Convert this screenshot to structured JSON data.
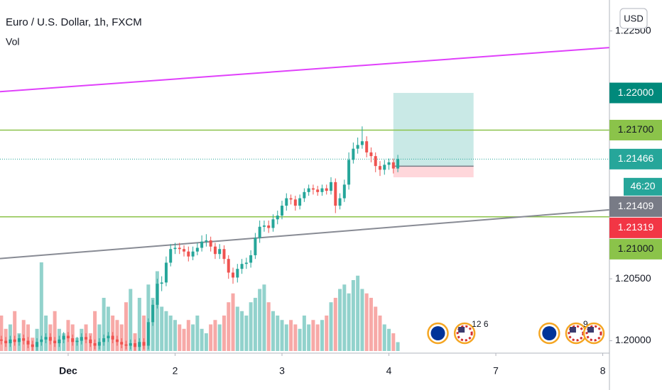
{
  "chart_data": {
    "type": "candlestick",
    "title": "Euro / U.S. Dollar, 1h, FXCM",
    "indicator": "Vol",
    "currency": "USD",
    "up_color": "#26a69a",
    "down_color": "#ef5350",
    "xlim": [
      -15.3,
      121.5
    ],
    "xticks": [
      {
        "value": 0,
        "label": "Dec"
      },
      {
        "value": 24,
        "label": "2"
      },
      {
        "value": 48,
        "label": "3"
      },
      {
        "value": 72,
        "label": "4"
      },
      {
        "value": 96,
        "label": "7"
      },
      {
        "value": 120,
        "label": "8"
      }
    ],
    "ylim": [
      1.199,
      1.2275
    ],
    "yticks": [
      {
        "value": 1.225,
        "label": "1.22500"
      },
      {
        "value": 1.205,
        "label": "1.20500"
      },
      {
        "value": 1.2,
        "label": "1.20000"
      }
    ],
    "x": [
      -15,
      -14,
      -13,
      -12,
      -11,
      -10,
      -9,
      -8,
      -7,
      -6,
      -5,
      -4,
      -3,
      -2,
      -1,
      0,
      1,
      2,
      3,
      4,
      5,
      6,
      7,
      8,
      9,
      10,
      11,
      12,
      13,
      14,
      15,
      16,
      17,
      18,
      19,
      20,
      21,
      22,
      23,
      24,
      25,
      26,
      27,
      28,
      29,
      30,
      31,
      32,
      33,
      34,
      35,
      36,
      37,
      38,
      39,
      40,
      41,
      42,
      43,
      44,
      45,
      46,
      47,
      48,
      49,
      50,
      51,
      52,
      53,
      54,
      55,
      56,
      57,
      58,
      59,
      60,
      61,
      62,
      63,
      64,
      65,
      66,
      67,
      68,
      69,
      70,
      71,
      72,
      73,
      74
    ],
    "open": [
      1.2001,
      1.2,
      1.1998,
      1.2001,
      1.1999,
      1.2002,
      1.2,
      1.1997,
      1.1995,
      1.1999,
      1.2001,
      1.2003,
      1.2,
      1.1998,
      1.2001,
      1.2004,
      1.2002,
      1.1999,
      1.2,
      1.2003,
      1.2001,
      1.1998,
      1.1996,
      1.1999,
      1.2002,
      1.2004,
      1.2001,
      1.1999,
      1.1997,
      1.1996,
      1.1998,
      1.1995,
      1.1999,
      1.1996,
      1.2015,
      1.2029,
      1.2046,
      1.2047,
      1.2063,
      1.2074,
      1.2075,
      1.2074,
      1.2072,
      1.2068,
      1.2072,
      1.2075,
      1.208,
      1.2081,
      1.2076,
      1.207,
      1.2074,
      1.2066,
      1.2055,
      1.2051,
      1.2058,
      1.2062,
      1.2063,
      1.2069,
      1.2083,
      1.2092,
      1.2093,
      1.2091,
      1.2098,
      1.2101,
      1.2109,
      1.2115,
      1.2114,
      1.2109,
      1.2115,
      1.212,
      1.2123,
      1.2122,
      1.212,
      1.2123,
      1.2121,
      1.2128,
      1.2109,
      1.2115,
      1.2126,
      1.2146,
      1.2155,
      1.2158,
      1.2161,
      1.2152,
      1.2149,
      1.2141,
      1.2138,
      1.2142,
      1.2144,
      1.2139
    ],
    "high": [
      1.2004,
      1.2003,
      1.2004,
      1.2004,
      1.2005,
      1.2005,
      1.2003,
      1.2,
      1.2002,
      1.2004,
      1.2006,
      1.2006,
      1.2003,
      1.2004,
      1.2007,
      1.2007,
      1.2005,
      1.2003,
      1.2006,
      1.2006,
      1.2004,
      1.2001,
      1.2002,
      1.2005,
      1.2007,
      1.2007,
      1.2004,
      1.2002,
      1.2,
      1.2001,
      1.2001,
      1.2002,
      1.2002,
      1.2018,
      1.2033,
      1.205,
      1.2052,
      1.2068,
      1.2078,
      1.2079,
      1.2079,
      1.2077,
      1.2076,
      1.2076,
      1.2079,
      1.2085,
      1.2086,
      1.2084,
      1.2079,
      1.2078,
      1.2077,
      1.2069,
      1.2059,
      1.2062,
      1.2066,
      1.2067,
      1.2073,
      1.2087,
      1.2097,
      1.2097,
      1.2097,
      1.2102,
      1.2105,
      1.2113,
      1.2119,
      1.2118,
      1.2117,
      1.2118,
      1.2123,
      1.2126,
      1.2126,
      1.2125,
      1.2126,
      1.2126,
      1.2132,
      1.2131,
      1.2119,
      1.213,
      1.2152,
      1.216,
      1.2164,
      1.2173,
      1.2165,
      1.2156,
      1.2152,
      1.2145,
      1.2146,
      1.2147,
      1.2147,
      1.215
    ],
    "low": [
      1.1997,
      1.1995,
      1.1995,
      1.1996,
      1.1996,
      1.1997,
      1.1994,
      1.1992,
      1.1992,
      1.1996,
      1.1998,
      1.1997,
      1.1995,
      1.1995,
      1.1998,
      1.1999,
      1.1996,
      1.1996,
      1.1997,
      1.1998,
      1.1995,
      1.1993,
      1.1993,
      1.1996,
      1.1999,
      1.1998,
      1.1996,
      1.1994,
      1.1993,
      1.1993,
      1.1992,
      1.1992,
      1.1993,
      1.1993,
      1.2012,
      1.2026,
      1.204,
      1.2044,
      1.206,
      1.207,
      1.207,
      1.2068,
      1.2064,
      1.2065,
      1.2069,
      1.2072,
      1.2076,
      1.2072,
      1.2066,
      1.2066,
      1.2062,
      1.205,
      1.2046,
      1.2047,
      1.2054,
      1.2058,
      1.2059,
      1.2066,
      1.2079,
      1.2088,
      1.2087,
      1.2088,
      1.2094,
      1.2098,
      1.2105,
      1.211,
      1.2105,
      1.2106,
      1.2112,
      1.2117,
      1.2118,
      1.2117,
      1.2117,
      1.2118,
      1.2118,
      1.2103,
      1.2106,
      1.2112,
      1.2122,
      1.2143,
      1.2151,
      1.2155,
      1.2148,
      1.2144,
      1.2136,
      1.2133,
      1.2134,
      1.2138,
      1.2135,
      1.2136
    ],
    "close": [
      1.2,
      1.1998,
      1.2001,
      1.1999,
      1.2002,
      1.2,
      1.1997,
      1.1995,
      1.1999,
      1.2001,
      1.2003,
      1.2,
      1.1998,
      1.2001,
      1.2004,
      1.2002,
      1.1999,
      1.2,
      1.2003,
      1.2001,
      1.1998,
      1.1996,
      1.1999,
      1.2002,
      1.2004,
      1.2001,
      1.1999,
      1.1997,
      1.1996,
      1.1998,
      1.1995,
      1.1999,
      1.1996,
      1.2015,
      1.2029,
      1.2046,
      1.2047,
      1.2063,
      1.2074,
      1.2075,
      1.2074,
      1.2072,
      1.2068,
      1.2072,
      1.2075,
      1.208,
      1.2081,
      1.2076,
      1.207,
      1.2074,
      1.2066,
      1.2055,
      1.2051,
      1.2058,
      1.2062,
      1.2063,
      1.2069,
      1.2083,
      1.2092,
      1.2093,
      1.2091,
      1.2098,
      1.2101,
      1.2109,
      1.2115,
      1.2114,
      1.2109,
      1.2115,
      1.212,
      1.2123,
      1.2122,
      1.212,
      1.2123,
      1.2121,
      1.2128,
      1.2109,
      1.2115,
      1.2126,
      1.2146,
      1.2155,
      1.2158,
      1.2161,
      1.2152,
      1.2149,
      1.2141,
      1.2138,
      1.2142,
      1.2144,
      1.2139,
      1.21466
    ],
    "volume": [
      40,
      25,
      30,
      45,
      20,
      35,
      30,
      15,
      25,
      100,
      40,
      30,
      45,
      25,
      20,
      35,
      30,
      15,
      25,
      30,
      20,
      45,
      30,
      60,
      50,
      40,
      35,
      30,
      55,
      70,
      20,
      60,
      40,
      75,
      60,
      90,
      50,
      45,
      40,
      35,
      30,
      25,
      35,
      30,
      40,
      25,
      20,
      30,
      35,
      30,
      40,
      55,
      65,
      50,
      45,
      40,
      55,
      60,
      70,
      75,
      55,
      45,
      40,
      35,
      30,
      35,
      30,
      25,
      40,
      30,
      35,
      30,
      35,
      40,
      55,
      60,
      70,
      75,
      65,
      80,
      85,
      70,
      65,
      60,
      50,
      40,
      30,
      25,
      20,
      10
    ],
    "trendlines": [
      {
        "x": [
          -15.3,
          121.5
        ],
        "y": [
          1.2201,
          1.22366
        ],
        "color": "#e040fb"
      },
      {
        "x": [
          -15.3,
          121.5
        ],
        "y": [
          1.20663,
          1.21057
        ],
        "color": "#888b94"
      }
    ],
    "position": {
      "x": [
        73,
        91
      ],
      "profit_color": "#b2dfdb",
      "loss_color": "#ffcdd2"
    },
    "price_labels": [
      {
        "value": 1.22,
        "label": "1.22000",
        "color": "#00897b",
        "text_color": "#ffffff",
        "role": "target"
      },
      {
        "value": 1.217,
        "label": "1.21700",
        "color": "#8bc34a",
        "text_color": "#131722",
        "line": "solid"
      },
      {
        "value": 1.21466,
        "label": "1.21466",
        "color": "#26a69a",
        "text_color": "#ffffff",
        "line": "dotted",
        "countdown": "46:20"
      },
      {
        "value": 1.21409,
        "label": "1.21409",
        "color": "#787b86",
        "text_color": "#ffffff",
        "role": "entry"
      },
      {
        "value": 1.21319,
        "label": "1.21319",
        "color": "#f23645",
        "text_color": "#ffffff",
        "role": "stop"
      },
      {
        "value": 1.21,
        "label": "1.21000",
        "color": "#8bc34a",
        "text_color": "#131722",
        "line": "solid"
      }
    ],
    "events": [
      {
        "x": 83,
        "country": "EU"
      },
      {
        "x": 89,
        "country": "US",
        "label": "12 6"
      },
      {
        "x": 108,
        "country": "EU"
      },
      {
        "x": 114,
        "country": "US",
        "label": "9"
      },
      {
        "x": 118,
        "country": "US"
      }
    ]
  }
}
